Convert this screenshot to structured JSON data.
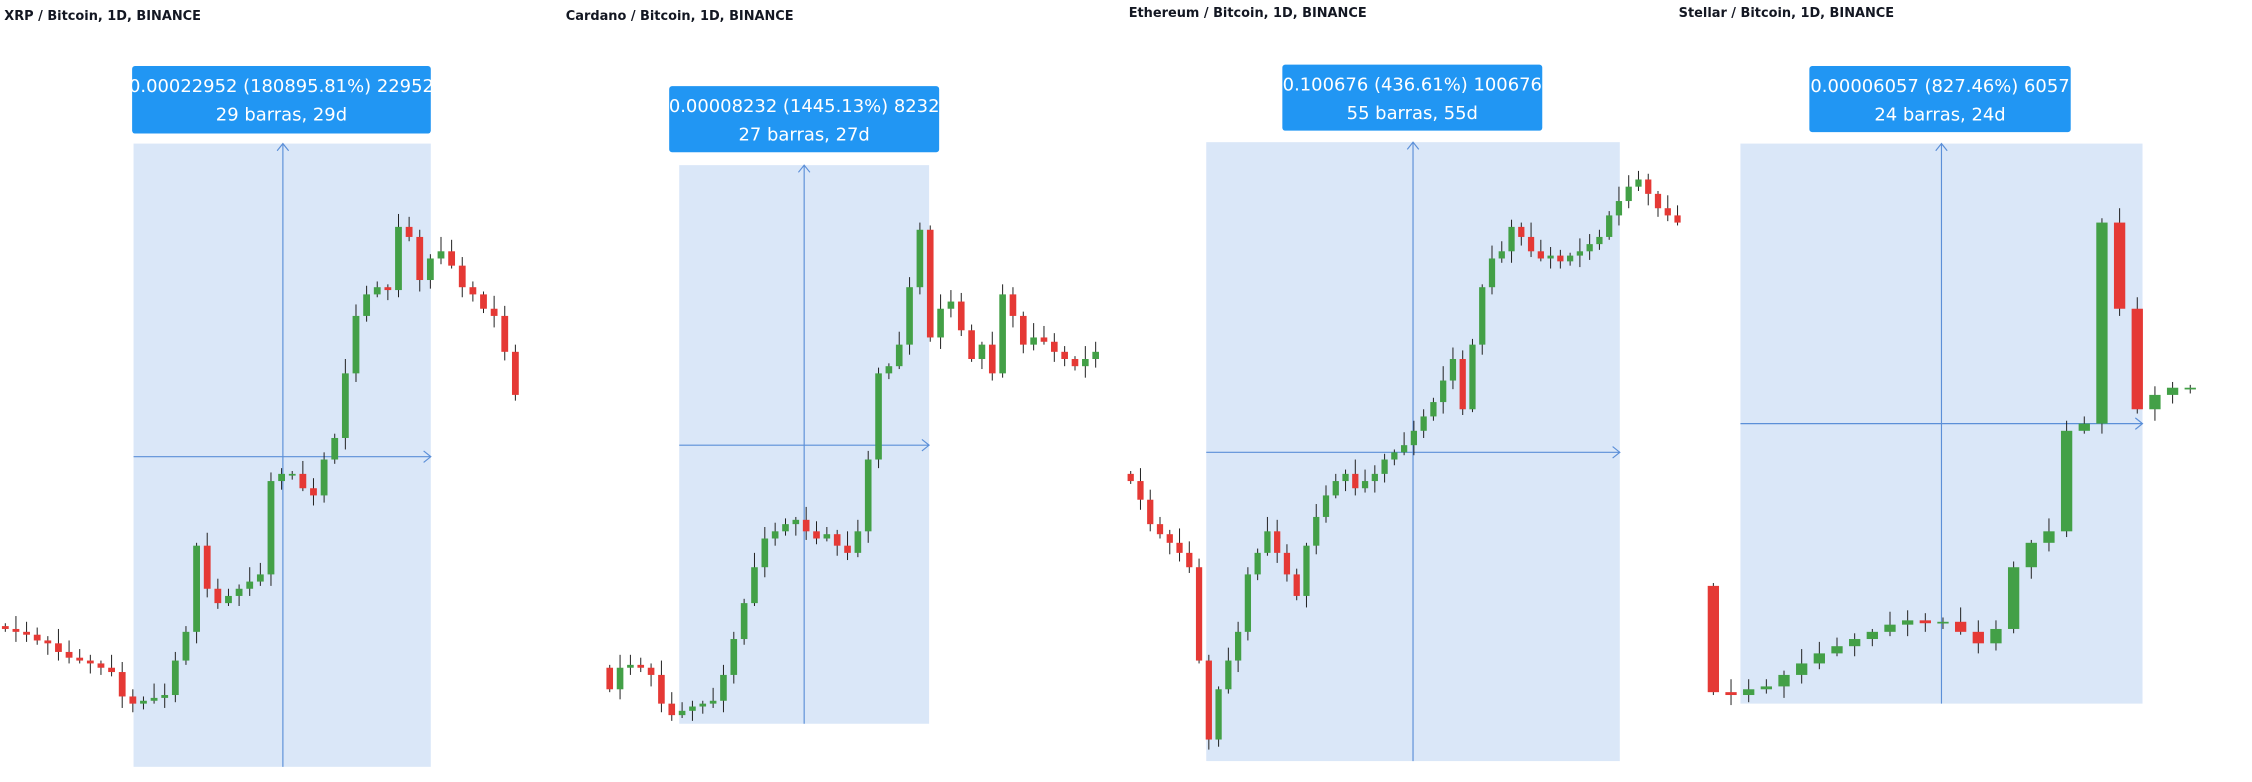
{
  "panels": [
    {
      "title": "XRP / Bitcoin, 1D, BINANCE",
      "measure": {
        "line1": "0.00022952 (180895.81%) 22952",
        "line2": "29 barras, 29d"
      }
    },
    {
      "title": "Cardano / Bitcoin, 1D, BINANCE",
      "measure": {
        "line1": "0.00008232 (1445.13%) 8232",
        "line2": "27 barras, 27d"
      }
    },
    {
      "title": "Ethereum / Bitcoin, 1D, BINANCE",
      "measure": {
        "line1": "0.100676 (436.61%) 100676",
        "line2": "55 barras, 55d"
      }
    },
    {
      "title": "Stellar / Bitcoin, 1D, BINANCE",
      "measure": {
        "line1": "0.00006057 (827.46%) 6057",
        "line2": "24 barras, 24d"
      }
    }
  ]
}
